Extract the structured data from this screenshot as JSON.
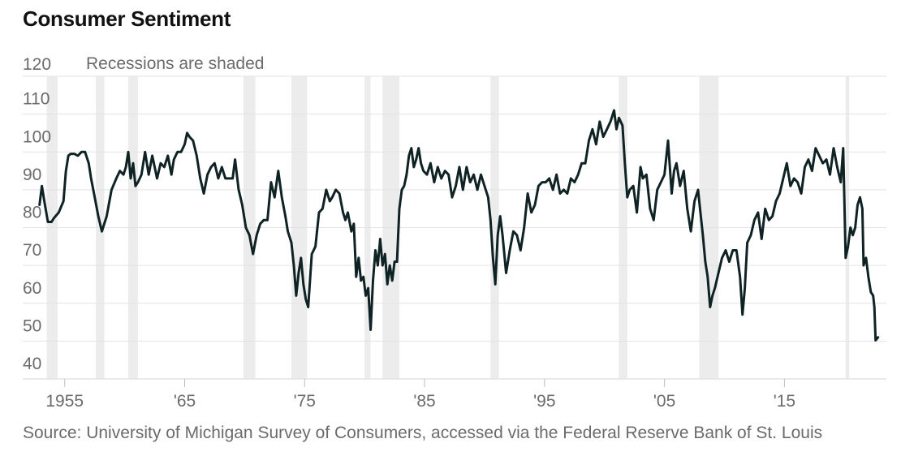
{
  "chart_data": {
    "type": "line",
    "title": "Consumer Sentiment",
    "annotation": "Recessions are shaded",
    "source": "Source: University of Michigan Survey of Consumers, accessed via the Federal Reserve Bank of St. Louis",
    "xlabel": "",
    "ylabel": "",
    "ylim": [
      40,
      120
    ],
    "xlim": [
      1951.5,
      2023.5
    ],
    "y_ticks": [
      40,
      50,
      60,
      70,
      80,
      90,
      100,
      110,
      120
    ],
    "x_ticks": [
      {
        "year": 1955,
        "label": "1955"
      },
      {
        "year": 1965,
        "label": "'65"
      },
      {
        "year": 1975,
        "label": "'75"
      },
      {
        "year": 1985,
        "label": "'85"
      },
      {
        "year": 1995,
        "label": "'95"
      },
      {
        "year": 2005,
        "label": "'05"
      },
      {
        "year": 2015,
        "label": "'15"
      }
    ],
    "grid": "horizontal",
    "line_color": "#0f2224",
    "grid_color": "#e3e3e3",
    "recession_color": "#ececec",
    "recessions": [
      [
        1953.5,
        1954.4
      ],
      [
        1957.6,
        1958.3
      ],
      [
        1960.3,
        1961.1
      ],
      [
        1969.9,
        1970.9
      ],
      [
        1973.9,
        1975.2
      ],
      [
        1980.0,
        1980.5
      ],
      [
        1981.5,
        1982.9
      ],
      [
        1990.5,
        1991.2
      ],
      [
        2001.2,
        2001.9
      ],
      [
        2007.9,
        2009.5
      ],
      [
        2020.1,
        2020.4
      ]
    ],
    "series": [
      {
        "name": "Consumer Sentiment",
        "x": [
          1952.9,
          1953.1,
          1953.3,
          1953.6,
          1953.9,
          1954.1,
          1954.5,
          1954.9,
          1955.1,
          1955.3,
          1955.5,
          1955.8,
          1956.1,
          1956.4,
          1956.7,
          1957.0,
          1957.2,
          1957.5,
          1957.8,
          1958.1,
          1958.5,
          1958.9,
          1959.3,
          1959.6,
          1959.9,
          1960.1,
          1960.3,
          1960.5,
          1960.7,
          1960.9,
          1961.1,
          1961.4,
          1961.7,
          1962.0,
          1962.3,
          1962.7,
          1963.0,
          1963.3,
          1963.6,
          1963.9,
          1964.1,
          1964.4,
          1964.7,
          1965.0,
          1965.2,
          1965.4,
          1965.7,
          1966.0,
          1966.3,
          1966.6,
          1966.9,
          1967.2,
          1967.5,
          1967.8,
          1968.1,
          1968.4,
          1968.7,
          1969.0,
          1969.2,
          1969.5,
          1969.8,
          1970.1,
          1970.4,
          1970.7,
          1971.0,
          1971.3,
          1971.6,
          1971.9,
          1972.2,
          1972.5,
          1972.8,
          1973.1,
          1973.4,
          1973.6,
          1973.9,
          1974.1,
          1974.3,
          1974.5,
          1974.7,
          1974.9,
          1975.1,
          1975.3,
          1975.6,
          1975.9,
          1976.2,
          1976.5,
          1976.8,
          1977.1,
          1977.3,
          1977.6,
          1977.9,
          1978.2,
          1978.4,
          1978.6,
          1978.9,
          1979.1,
          1979.3,
          1979.5,
          1979.7,
          1979.9,
          1980.1,
          1980.3,
          1980.5,
          1980.7,
          1980.9,
          1981.1,
          1981.3,
          1981.5,
          1981.7,
          1981.9,
          1982.1,
          1982.3,
          1982.5,
          1982.7,
          1982.9,
          1983.1,
          1983.3,
          1983.5,
          1983.7,
          1983.9,
          1984.1,
          1984.3,
          1984.5,
          1984.7,
          1984.9,
          1985.2,
          1985.5,
          1985.8,
          1986.1,
          1986.4,
          1986.7,
          1987.0,
          1987.3,
          1987.6,
          1987.9,
          1988.2,
          1988.5,
          1988.8,
          1989.1,
          1989.4,
          1989.7,
          1990.0,
          1990.3,
          1990.5,
          1990.7,
          1990.9,
          1991.1,
          1991.3,
          1991.5,
          1991.8,
          1992.1,
          1992.4,
          1992.7,
          1993.0,
          1993.3,
          1993.6,
          1993.9,
          1994.2,
          1994.5,
          1994.8,
          1995.1,
          1995.4,
          1995.7,
          1996.0,
          1996.3,
          1996.6,
          1996.9,
          1997.2,
          1997.5,
          1997.8,
          1998.1,
          1998.4,
          1998.7,
          1999.0,
          1999.3,
          1999.6,
          1999.9,
          2000.2,
          2000.5,
          2000.8,
          2001.0,
          2001.2,
          2001.5,
          2001.7,
          2001.9,
          2002.1,
          2002.4,
          2002.7,
          2003.0,
          2003.2,
          2003.5,
          2003.8,
          2004.1,
          2004.4,
          2004.7,
          2005.0,
          2005.3,
          2005.6,
          2005.8,
          2006.0,
          2006.3,
          2006.6,
          2006.9,
          2007.2,
          2007.5,
          2007.8,
          2008.0,
          2008.2,
          2008.4,
          2008.6,
          2008.8,
          2009.0,
          2009.2,
          2009.5,
          2009.8,
          2010.1,
          2010.4,
          2010.7,
          2011.0,
          2011.3,
          2011.5,
          2011.7,
          2011.9,
          2012.2,
          2012.5,
          2012.8,
          2013.1,
          2013.4,
          2013.7,
          2014.0,
          2014.3,
          2014.6,
          2014.9,
          2015.2,
          2015.5,
          2015.8,
          2016.1,
          2016.4,
          2016.7,
          2017.0,
          2017.3,
          2017.6,
          2017.9,
          2018.2,
          2018.5,
          2018.8,
          2019.1,
          2019.4,
          2019.7,
          2019.9,
          2020.1,
          2020.3,
          2020.5,
          2020.7,
          2020.9,
          2021.1,
          2021.3,
          2021.5,
          2021.6,
          2021.8,
          2022.0,
          2022.2,
          2022.4,
          2022.5,
          2022.6,
          2022.8
        ],
        "values": [
          86,
          91,
          87,
          81.5,
          81.5,
          82.5,
          84,
          87,
          95,
          99,
          99.5,
          99.5,
          99,
          100,
          100,
          97,
          93,
          88,
          83,
          79,
          83,
          90,
          93,
          95,
          94,
          96,
          100,
          93,
          97,
          91,
          92,
          94,
          100,
          94,
          99,
          93,
          97,
          96,
          99,
          94,
          98,
          100,
          100,
          102,
          105,
          104,
          103,
          99,
          93,
          89,
          94,
          96,
          97,
          93,
          96,
          93,
          93,
          93,
          98,
          90,
          86,
          80,
          78,
          73,
          78,
          81,
          82,
          82,
          92,
          88,
          95,
          88,
          83,
          79,
          76,
          70,
          62,
          68,
          72,
          65,
          61,
          59,
          73,
          75,
          84,
          85,
          90,
          87,
          88,
          90,
          89,
          84,
          82,
          84,
          79,
          81,
          67,
          72,
          66,
          67,
          62,
          64,
          53,
          66,
          74,
          70,
          77,
          70,
          73,
          65,
          70,
          66,
          71,
          71,
          85,
          90,
          91,
          94,
          99,
          101,
          96,
          98,
          101,
          97,
          95,
          94,
          97,
          92,
          96,
          93,
          95,
          94,
          88,
          91,
          96,
          90,
          96,
          92,
          94,
          90,
          94,
          91,
          88,
          82,
          72,
          65,
          78,
          83,
          78,
          68,
          74,
          79,
          78,
          74,
          80,
          89,
          84,
          86,
          91,
          92,
          92,
          93,
          90,
          94,
          89,
          90,
          89,
          93,
          92,
          94,
          97,
          97,
          103,
          106,
          102,
          108,
          104,
          106,
          108,
          111,
          106,
          109,
          107,
          97,
          88,
          90,
          91,
          84,
          96,
          93,
          94,
          85,
          82,
          90,
          92,
          94,
          103,
          89,
          95,
          97,
          91,
          95,
          85,
          79,
          87,
          90,
          84,
          78,
          71,
          67,
          59,
          62,
          64,
          68,
          72,
          74,
          71,
          74,
          74,
          67,
          57,
          64,
          76,
          78,
          82,
          84,
          77,
          85,
          82,
          83,
          87,
          89,
          93,
          97,
          91,
          93,
          92,
          89,
          96,
          98,
          95,
          101,
          99,
          97,
          98,
          94,
          101,
          96,
          92,
          101,
          72,
          75,
          80,
          78,
          80,
          86,
          88,
          85,
          70,
          72,
          67,
          63,
          62,
          59,
          50.2,
          51
        ]
      }
    ]
  }
}
